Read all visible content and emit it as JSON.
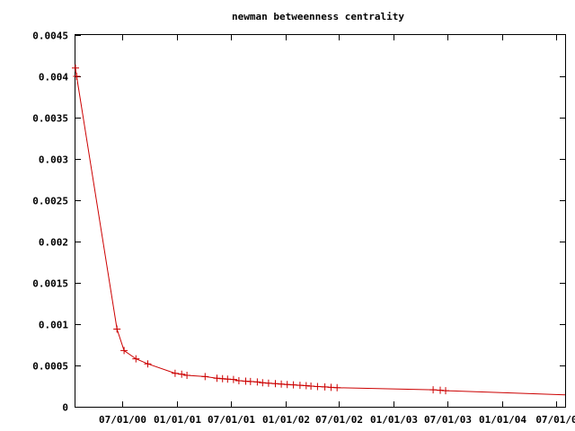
{
  "chart_data": {
    "type": "line",
    "title": "newman betweenness centrality",
    "xlabel": "",
    "ylabel": "",
    "x_axis_type": "date",
    "xlim": [
      "2000-01-24",
      "2004-08-01"
    ],
    "ylim": [
      0,
      0.0045
    ],
    "y_ticks": [
      0,
      0.0005,
      0.001,
      0.0015,
      0.002,
      0.0025,
      0.003,
      0.0035,
      0.004,
      0.0045
    ],
    "y_tick_labels": [
      "0",
      "0.0005",
      "0.001",
      "0.0015",
      "0.002",
      "0.0025",
      "0.003",
      "0.0035",
      "0.004",
      "0.0045"
    ],
    "x_ticks": [
      "2000-07-01",
      "2001-01-01",
      "2001-07-01",
      "2002-01-01",
      "2002-07-01",
      "2003-01-01",
      "2003-07-01",
      "2004-01-01",
      "2004-07-01"
    ],
    "x_tick_labels": [
      "07/01/00",
      "01/01/01",
      "07/01/01",
      "01/01/02",
      "07/01/02",
      "01/01/03",
      "07/01/03",
      "01/01/04",
      "07/01/0"
    ],
    "grid": false,
    "legend": "none",
    "color": "#cc0000",
    "marker": "plus",
    "series": [
      {
        "x": [
          "2000-01-24",
          "2000-01-28",
          "2000-06-12",
          "2000-07-06",
          "2000-08-15",
          "2000-09-24",
          "2000-12-25",
          "2001-01-16",
          "2001-02-03",
          "2001-04-05",
          "2001-05-15",
          "2001-06-03",
          "2001-06-20",
          "2001-07-10",
          "2001-07-28",
          "2001-08-20",
          "2001-09-05",
          "2001-09-28",
          "2001-10-16",
          "2001-11-05",
          "2001-11-28",
          "2001-12-18",
          "2002-01-07",
          "2002-01-28",
          "2002-02-19",
          "2002-03-12",
          "2002-03-28",
          "2002-04-19",
          "2002-05-14",
          "2002-06-04",
          "2002-06-24",
          "2003-05-14",
          "2003-06-07",
          "2003-06-25",
          "2004-08-01"
        ],
        "y": [
          0.0041,
          0.004,
          0.00094,
          0.00068,
          0.00058,
          0.00052,
          0.000405,
          0.000395,
          0.00038,
          0.000365,
          0.000345,
          0.00034,
          0.000335,
          0.00033,
          0.000315,
          0.00031,
          0.000305,
          0.0003,
          0.00029,
          0.000285,
          0.00028,
          0.000275,
          0.00027,
          0.000265,
          0.00026,
          0.000255,
          0.00025,
          0.000245,
          0.00024,
          0.000235,
          0.00023,
          0.000205,
          0.0002,
          0.000195,
          0.000145
        ],
        "markers": [
          true,
          true,
          true,
          true,
          true,
          true,
          true,
          true,
          true,
          true,
          true,
          true,
          true,
          true,
          true,
          true,
          true,
          true,
          true,
          true,
          true,
          true,
          true,
          true,
          true,
          true,
          true,
          true,
          true,
          true,
          true,
          true,
          true,
          true,
          false
        ]
      }
    ]
  }
}
